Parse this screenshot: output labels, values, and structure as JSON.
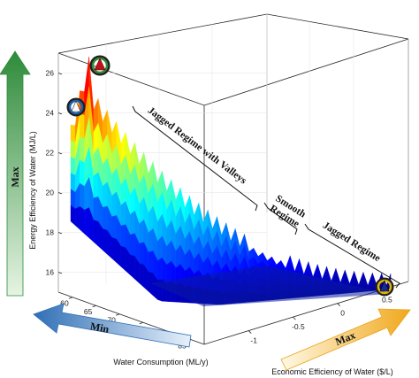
{
  "chart_data": {
    "type": "surface3d",
    "z_axis": {
      "label": "Energy Efficiency of Water (MJ/L)",
      "ticks": [
        16,
        18,
        20,
        22,
        24,
        26
      ],
      "range": [
        15,
        27
      ]
    },
    "x_axis": {
      "label": "Water Consumption (ML/y)",
      "ticks": [
        60,
        65,
        70,
        75,
        80,
        85
      ],
      "range": [
        57,
        88
      ]
    },
    "y_axis": {
      "label": "Economic Efficiency of Water ($/L)",
      "ticks": [
        -1,
        -0.5,
        0,
        0.5
      ],
      "range": [
        -1.5,
        0.8
      ]
    },
    "regimes": [
      {
        "label": "Jagged Regime with Valleys"
      },
      {
        "label": "Smooth Regime"
      },
      {
        "label": "Jagged Regime"
      }
    ],
    "arrows": [
      {
        "label": "Max",
        "axis": "energy",
        "color": "#2e8b3a"
      },
      {
        "label": "Min",
        "axis": "water",
        "color": "#2f6fb6"
      },
      {
        "label": "Max",
        "axis": "economic",
        "color": "#e8a317"
      }
    ],
    "markers": [
      {
        "role": "green-circled",
        "color": "#2e8b3a"
      },
      {
        "role": "blue-circled",
        "color": "#1d62b0"
      },
      {
        "role": "yellow-circled",
        "color": "#e0b400"
      }
    ],
    "colormap": "jet",
    "grid": true
  }
}
